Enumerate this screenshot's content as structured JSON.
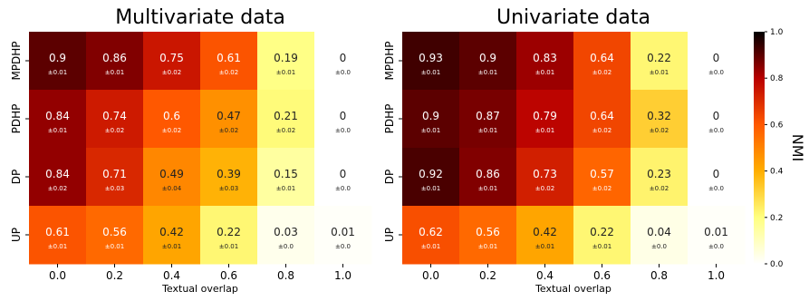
{
  "colorbar": {
    "label": "NMI",
    "ticks": [
      "1.0",
      "0.8",
      "0.6",
      "0.4",
      "0.2",
      "0.0"
    ],
    "range": [
      0,
      1
    ],
    "colormap": "afmhot_r",
    "colors": [
      "#ffffff",
      "#ffff80",
      "#ffae00",
      "#ff5800",
      "#b80000",
      "#000000"
    ]
  },
  "chart_data": [
    {
      "type": "heatmap",
      "title": "Multivariate data",
      "xlabel": "Textual overlap",
      "ylabel": "",
      "x_categories": [
        "0.0",
        "0.2",
        "0.4",
        "0.6",
        "0.8",
        "1.0"
      ],
      "y_categories": [
        "MPDHP",
        "PDHP",
        "DP",
        "UP"
      ],
      "values": [
        [
          0.9,
          0.86,
          0.75,
          0.61,
          0.19,
          0
        ],
        [
          0.84,
          0.74,
          0.6,
          0.47,
          0.21,
          0
        ],
        [
          0.84,
          0.71,
          0.49,
          0.39,
          0.15,
          0
        ],
        [
          0.61,
          0.56,
          0.42,
          0.22,
          0.03,
          0.01
        ]
      ],
      "errors": [
        [
          "±0.01",
          "±0.01",
          "±0.02",
          "±0.02",
          "±0.01",
          "±0.0"
        ],
        [
          "±0.01",
          "±0.02",
          "±0.02",
          "±0.02",
          "±0.02",
          "±0.0"
        ],
        [
          "±0.02",
          "±0.03",
          "±0.04",
          "±0.03",
          "±0.01",
          "±0.0"
        ],
        [
          "±0.01",
          "±0.01",
          "±0.01",
          "±0.01",
          "±0.0",
          "±0.0"
        ]
      ]
    },
    {
      "type": "heatmap",
      "title": "Univariate data",
      "xlabel": "Textual overlap",
      "ylabel": "",
      "x_categories": [
        "0.0",
        "0.2",
        "0.4",
        "0.6",
        "0.8",
        "1.0"
      ],
      "y_categories": [
        "MPDHP",
        "PDHP",
        "DP",
        "UP"
      ],
      "values": [
        [
          0.93,
          0.9,
          0.83,
          0.64,
          0.22,
          0
        ],
        [
          0.9,
          0.87,
          0.79,
          0.64,
          0.32,
          0
        ],
        [
          0.92,
          0.86,
          0.73,
          0.57,
          0.23,
          0
        ],
        [
          0.62,
          0.56,
          0.42,
          0.22,
          0.04,
          0.01
        ]
      ],
      "errors": [
        [
          "±0.01",
          "±0.01",
          "±0.01",
          "±0.02",
          "±0.01",
          "±0.0"
        ],
        [
          "±0.01",
          "±0.01",
          "±0.01",
          "±0.02",
          "±0.02",
          "±0.0"
        ],
        [
          "±0.01",
          "±0.01",
          "±0.02",
          "±0.02",
          "±0.02",
          "±0.0"
        ],
        [
          "±0.01",
          "±0.01",
          "±0.01",
          "±0.01",
          "±0.0",
          "±0.0"
        ]
      ]
    }
  ]
}
